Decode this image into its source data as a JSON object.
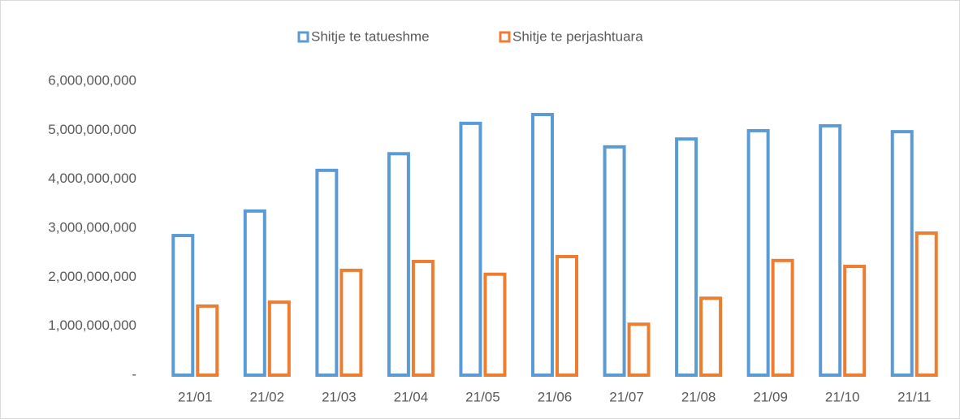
{
  "chart_data": {
    "type": "bar",
    "categories": [
      "21/01",
      "21/02",
      "21/03",
      "21/04",
      "21/05",
      "21/06",
      "21/07",
      "21/08",
      "21/09",
      "21/10",
      "21/11"
    ],
    "series": [
      {
        "name": "Shitje te tatueshme",
        "color": "#5b9bd5",
        "values": [
          2850000000,
          3350000000,
          4180000000,
          4520000000,
          5140000000,
          5320000000,
          4660000000,
          4820000000,
          4990000000,
          5090000000,
          4970000000
        ]
      },
      {
        "name": "Shitje te perjashtuara",
        "color": "#ed7d31",
        "values": [
          1410000000,
          1490000000,
          2140000000,
          2320000000,
          2060000000,
          2420000000,
          1040000000,
          1570000000,
          2340000000,
          2220000000,
          2900000000
        ]
      }
    ],
    "ylim": [
      0,
      6000000000
    ],
    "yticks": [
      {
        "value": 0,
        "label": "-"
      },
      {
        "value": 1000000000,
        "label": "1,000,000,000"
      },
      {
        "value": 2000000000,
        "label": "2,000,000,000"
      },
      {
        "value": 3000000000,
        "label": "3,000,000,000"
      },
      {
        "value": 4000000000,
        "label": "4,000,000,000"
      },
      {
        "value": 5000000000,
        "label": "5,000,000,000"
      },
      {
        "value": 6000000000,
        "label": "6,000,000,000"
      }
    ],
    "legend": "top"
  }
}
